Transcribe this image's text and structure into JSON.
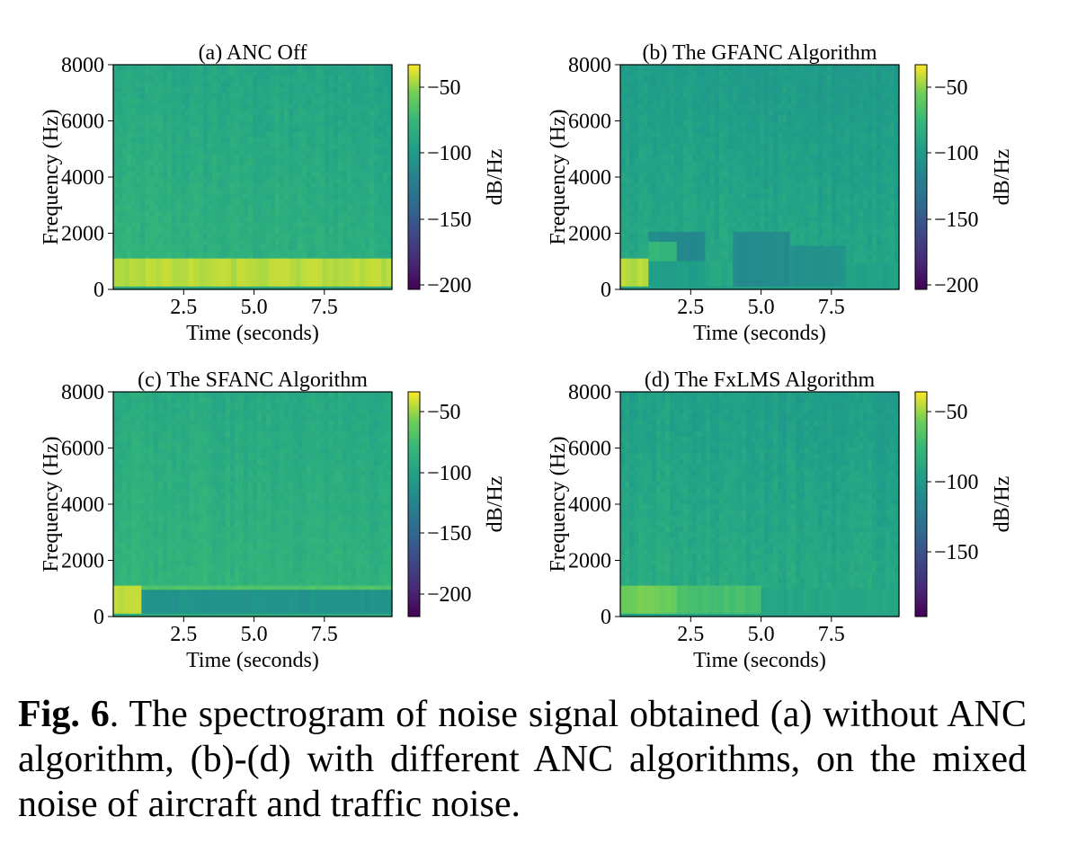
{
  "figure": {
    "panels": [
      {
        "id": "a",
        "title": "(a) ANC Off",
        "xlabel": "Time (seconds)",
        "ylabel": "Frequency (Hz)",
        "colorbar_label": "dB/Hz",
        "x_ticks": [
          "2.5",
          "5.0",
          "7.5"
        ],
        "y_ticks": [
          "0",
          "2000",
          "4000",
          "6000",
          "8000"
        ],
        "colorbar_ticks": [
          "−50",
          "−100",
          "−150",
          "−200"
        ]
      },
      {
        "id": "b",
        "title": "(b) The GFANC Algorithm",
        "xlabel": "Time (seconds)",
        "ylabel": "Frequency (Hz)",
        "colorbar_label": "dB/Hz",
        "x_ticks": [
          "2.5",
          "5.0",
          "7.5"
        ],
        "y_ticks": [
          "0",
          "2000",
          "4000",
          "6000",
          "8000"
        ],
        "colorbar_ticks": [
          "−50",
          "−100",
          "−150",
          "−200"
        ]
      },
      {
        "id": "c",
        "title": "(c) The SFANC Algorithm",
        "xlabel": "Time (seconds)",
        "ylabel": "Frequency (Hz)",
        "colorbar_label": "dB/Hz",
        "x_ticks": [
          "2.5",
          "5.0",
          "7.5"
        ],
        "y_ticks": [
          "0",
          "2000",
          "4000",
          "6000",
          "8000"
        ],
        "colorbar_ticks": [
          "−50",
          "−100",
          "−150",
          "−200"
        ]
      },
      {
        "id": "d",
        "title": "(d) The FxLMS Algorithm",
        "xlabel": "Time (seconds)",
        "ylabel": "Frequency (Hz)",
        "colorbar_label": "dB/Hz",
        "x_ticks": [
          "2.5",
          "5.0",
          "7.5"
        ],
        "y_ticks": [
          "0",
          "2000",
          "4000",
          "6000",
          "8000"
        ],
        "colorbar_ticks": [
          "−50",
          "−100",
          "−150"
        ]
      }
    ]
  },
  "caption": {
    "label": "Fig. 6",
    "text": ". The spectrogram of noise signal obtained (a) without ANC algorithm, (b)-(d) with different ANC algorithms, on the mixed noise of aircraft and traffic noise."
  },
  "chart_data": [
    {
      "type": "heatmap",
      "title": "(a) ANC Off",
      "xlabel": "Time (seconds)",
      "ylabel": "Frequency (Hz)",
      "colorbar_label": "dB/Hz",
      "colormap": "viridis",
      "xlim": [
        0,
        9.9
      ],
      "ylim": [
        0,
        8000
      ],
      "clim": [
        -205,
        -35
      ],
      "base_db": -80,
      "regions": [
        {
          "t": [
            0,
            9.9
          ],
          "f": [
            100,
            1100
          ],
          "db": -45
        }
      ]
    },
    {
      "type": "heatmap",
      "title": "(b) The GFANC Algorithm",
      "xlabel": "Time (seconds)",
      "ylabel": "Frequency (Hz)",
      "colorbar_label": "dB/Hz",
      "colormap": "viridis",
      "xlim": [
        0,
        9.9
      ],
      "ylim": [
        0,
        8000
      ],
      "clim": [
        -205,
        -35
      ],
      "base_db": -88,
      "regions": [
        {
          "t": [
            0,
            1.0
          ],
          "f": [
            100,
            1100
          ],
          "db": -45
        },
        {
          "t": [
            1.0,
            3.0
          ],
          "f": [
            100,
            1000
          ],
          "db": -98
        },
        {
          "t": [
            1.0,
            3.0
          ],
          "f": [
            1000,
            1700
          ],
          "db": -80
        },
        {
          "t": [
            1.0,
            2.0
          ],
          "f": [
            1700,
            2050
          ],
          "db": -112
        },
        {
          "t": [
            2.0,
            3.0
          ],
          "f": [
            1000,
            2050
          ],
          "db": -115
        },
        {
          "t": [
            3.0,
            4.0
          ],
          "f": [
            100,
            1000
          ],
          "db": -90
        },
        {
          "t": [
            4.0,
            6.0
          ],
          "f": [
            100,
            2050
          ],
          "db": -112
        },
        {
          "t": [
            6.0,
            8.0
          ],
          "f": [
            100,
            1550
          ],
          "db": -108
        },
        {
          "t": [
            8.0,
            9.9
          ],
          "f": [
            100,
            950
          ],
          "db": -95
        }
      ]
    },
    {
      "type": "heatmap",
      "title": "(c) The SFANC Algorithm",
      "xlabel": "Time (seconds)",
      "ylabel": "Frequency (Hz)",
      "colorbar_label": "dB/Hz",
      "colormap": "viridis",
      "xlim": [
        0,
        9.9
      ],
      "ylim": [
        0,
        8000
      ],
      "clim": [
        -220,
        -35
      ],
      "base_db": -82,
      "regions": [
        {
          "t": [
            0,
            1.0
          ],
          "f": [
            100,
            1100
          ],
          "db": -45
        },
        {
          "t": [
            1.0,
            9.9
          ],
          "f": [
            950,
            1100
          ],
          "db": -70
        },
        {
          "t": [
            1.0,
            9.9
          ],
          "f": [
            100,
            950
          ],
          "db": -112
        }
      ]
    },
    {
      "type": "heatmap",
      "title": "(d) The FxLMS Algorithm",
      "xlabel": "Time (seconds)",
      "ylabel": "Frequency (Hz)",
      "colorbar_label": "dB/Hz",
      "colormap": "viridis",
      "xlim": [
        0,
        9.9
      ],
      "ylim": [
        0,
        8000
      ],
      "clim": [
        -195,
        -35
      ],
      "base_db": -82,
      "regions": [
        {
          "t": [
            0,
            2.0
          ],
          "f": [
            100,
            1100
          ],
          "db": -55
        },
        {
          "t": [
            2.0,
            5.0
          ],
          "f": [
            100,
            1100
          ],
          "db": -68
        },
        {
          "t": [
            5.0,
            9.9
          ],
          "f": [
            100,
            1000
          ],
          "db": -88
        }
      ]
    }
  ]
}
